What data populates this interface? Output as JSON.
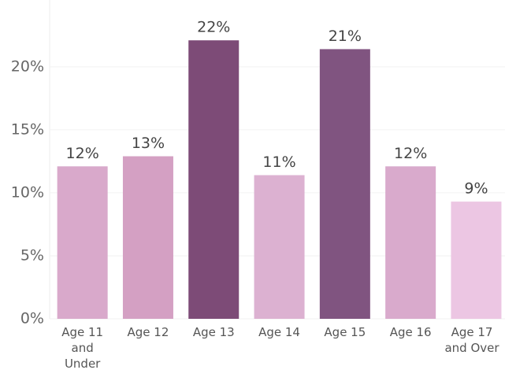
{
  "chart_data": {
    "type": "bar",
    "categories": [
      "Age 11\nand\nUnder",
      "Age 12",
      "Age 13",
      "Age 14",
      "Age 15",
      "Age 16",
      "Age 17\nand Over"
    ],
    "values": [
      12.1,
      12.9,
      22.1,
      11.4,
      21.4,
      12.1,
      9.3
    ],
    "value_labels": [
      "12%",
      "13%",
      "22%",
      "11%",
      "21%",
      "12%",
      "9%"
    ],
    "colors": [
      "#d9a9cb",
      "#d4a0c3",
      "#7d4b77",
      "#dcb1d1",
      "#805480",
      "#d9aacc",
      "#ecc6e3"
    ],
    "ylim": [
      0,
      25.3
    ],
    "yticks": [
      {
        "value": 0,
        "label": "0%"
      },
      {
        "value": 5,
        "label": "5%"
      },
      {
        "value": 10,
        "label": "10%"
      },
      {
        "value": 15,
        "label": "15%"
      },
      {
        "value": 20,
        "label": "20%"
      }
    ],
    "grid": true
  }
}
